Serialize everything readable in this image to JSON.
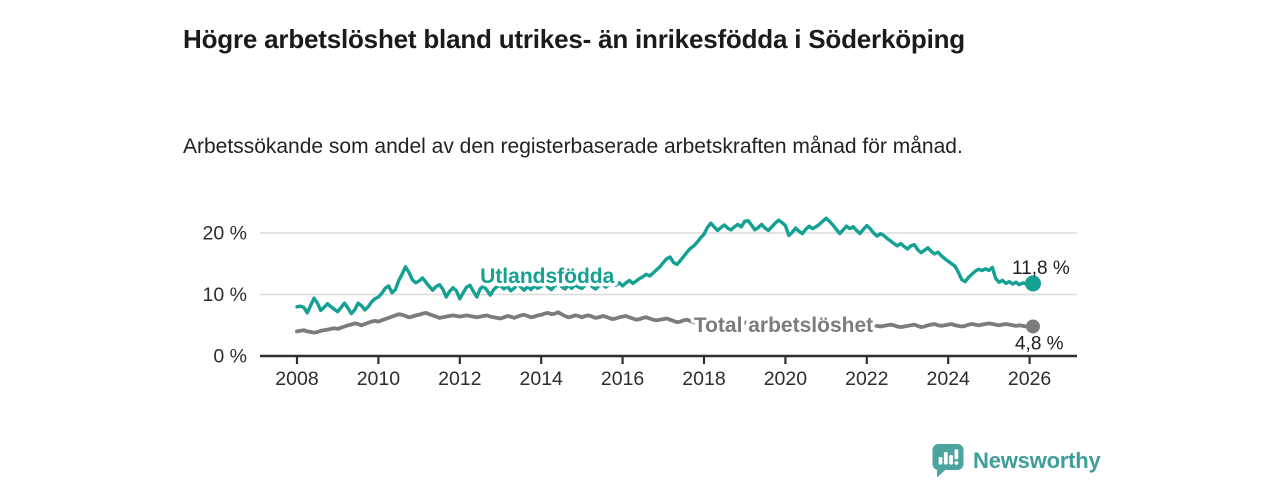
{
  "header": {
    "title": "Högre arbetslöshet bland utrikes- än inrikesfödda i Söderköping",
    "subtitle": "Arbetssökande som andel av den registerbaserade arbetskraften månad för månad."
  },
  "branding": {
    "logo_text": "Newsworthy",
    "logo_icon": "bar-chart-speech-bubble",
    "logo_color": "#4ba49f",
    "logo_text_color": "#3f9e99"
  },
  "colors": {
    "accent_teal": "#14a193",
    "neutral_gray": "#7c7c7c",
    "grid": "#dbdbdb",
    "axis": "#2f2f2f",
    "text_dark": "#1b1b1b"
  },
  "chart_data": {
    "type": "line",
    "title": "Högre arbetslöshet bland utrikes- än inrikesfödda i Söderköping",
    "subtitle": "Arbetssökande som andel av den registerbaserade arbetskraften månad för månad.",
    "x_start_year": 2008,
    "frequency": "monthly",
    "x_ticks": [
      2008,
      2010,
      2012,
      2014,
      2016,
      2018,
      2020,
      2022,
      2024,
      2026
    ],
    "yticks": [
      0,
      10,
      20
    ],
    "ytick_labels": [
      "0 %",
      "10 %",
      "20 %"
    ],
    "ylim": [
      0,
      24
    ],
    "grid": "horizontal",
    "legend_position": "inline-labels",
    "series": [
      {
        "name": "Utlandsfödda",
        "color": "#14a193",
        "end_label": "11,8 %",
        "end_value": 11.8,
        "label_year": 2012.5,
        "label_level": 11.9,
        "values": [
          8.0,
          8.1,
          7.9,
          7.0,
          8.2,
          9.4,
          8.6,
          7.4,
          7.9,
          8.5,
          8.0,
          7.6,
          7.2,
          7.9,
          8.6,
          7.8,
          6.9,
          7.5,
          8.6,
          8.2,
          7.5,
          8.0,
          8.8,
          9.3,
          9.6,
          10.2,
          11.0,
          11.4,
          10.3,
          10.8,
          12.3,
          13.3,
          14.5,
          13.6,
          12.4,
          11.9,
          12.2,
          12.7,
          12.0,
          11.3,
          10.7,
          11.3,
          11.6,
          10.9,
          9.6,
          10.5,
          11.1,
          10.6,
          9.3,
          10.3,
          11.2,
          11.5,
          10.5,
          9.6,
          10.9,
          11.4,
          10.7,
          9.9,
          10.8,
          11.3,
          11.5,
          10.9,
          11.4,
          10.6,
          11.0,
          11.7,
          11.2,
          10.7,
          11.3,
          10.8,
          11.4,
          11.0,
          11.3,
          11.8,
          11.2,
          10.8,
          11.4,
          11.9,
          11.3,
          10.9,
          11.5,
          11.0,
          11.6,
          11.2,
          11.0,
          11.5,
          11.9,
          11.3,
          10.9,
          11.4,
          11.8,
          11.2,
          11.6,
          12.0,
          11.5,
          11.9,
          11.4,
          11.9,
          12.3,
          11.8,
          12.2,
          12.6,
          12.9,
          13.3,
          13.0,
          13.5,
          14.0,
          14.5,
          15.2,
          15.8,
          16.1,
          15.2,
          14.9,
          15.5,
          16.2,
          16.9,
          17.5,
          17.9,
          18.5,
          19.2,
          19.8,
          20.9,
          21.6,
          21.0,
          20.4,
          20.9,
          21.3,
          20.8,
          20.5,
          21.0,
          21.4,
          21.0,
          21.9,
          22.0,
          21.3,
          20.5,
          20.9,
          21.4,
          20.8,
          20.4,
          21.0,
          21.6,
          22.1,
          21.7,
          21.2,
          19.6,
          20.1,
          20.8,
          20.3,
          19.9,
          20.6,
          21.1,
          20.7,
          21.0,
          21.4,
          21.9,
          22.4,
          21.9,
          21.3,
          20.6,
          19.9,
          20.5,
          21.1,
          20.7,
          21.0,
          20.4,
          19.9,
          20.6,
          21.2,
          20.7,
          20.0,
          19.5,
          19.9,
          19.6,
          19.1,
          18.7,
          18.3,
          17.9,
          18.3,
          17.8,
          17.4,
          17.9,
          18.1,
          17.3,
          16.8,
          17.2,
          17.6,
          17.0,
          16.6,
          16.9,
          16.3,
          15.8,
          15.4,
          15.0,
          14.6,
          13.6,
          12.4,
          12.1,
          12.8,
          13.3,
          13.8,
          14.1,
          13.9,
          14.2,
          13.9,
          14.4,
          12.6,
          12.0,
          12.3,
          11.8,
          12.1,
          11.7,
          12.0,
          11.6,
          11.9,
          11.7,
          11.9,
          11.8
        ]
      },
      {
        "name": "Total arbetslöshet",
        "color": "#7c7c7c",
        "end_label": "4,8 %",
        "end_value": 4.8,
        "label_year": 2017.75,
        "label_level": 3.9,
        "values": [
          4.0,
          4.1,
          4.2,
          4.0,
          3.9,
          3.8,
          3.9,
          4.1,
          4.2,
          4.3,
          4.4,
          4.5,
          4.4,
          4.6,
          4.8,
          5.0,
          5.1,
          5.3,
          5.2,
          5.0,
          5.2,
          5.4,
          5.6,
          5.7,
          5.6,
          5.8,
          6.0,
          6.2,
          6.4,
          6.6,
          6.8,
          6.7,
          6.5,
          6.3,
          6.4,
          6.6,
          6.7,
          6.9,
          7.0,
          6.8,
          6.6,
          6.4,
          6.2,
          6.3,
          6.4,
          6.5,
          6.6,
          6.5,
          6.4,
          6.5,
          6.6,
          6.5,
          6.4,
          6.3,
          6.4,
          6.5,
          6.6,
          6.4,
          6.3,
          6.2,
          6.1,
          6.3,
          6.5,
          6.4,
          6.2,
          6.4,
          6.6,
          6.7,
          6.5,
          6.3,
          6.4,
          6.6,
          6.7,
          6.9,
          7.0,
          6.8,
          6.9,
          7.1,
          6.8,
          6.5,
          6.3,
          6.4,
          6.6,
          6.5,
          6.3,
          6.5,
          6.6,
          6.4,
          6.2,
          6.3,
          6.5,
          6.4,
          6.2,
          6.0,
          6.1,
          6.3,
          6.4,
          6.5,
          6.3,
          6.1,
          5.9,
          6.0,
          6.2,
          6.3,
          6.1,
          5.9,
          5.8,
          5.9,
          6.0,
          6.1,
          5.9,
          5.7,
          5.5,
          5.6,
          5.8,
          5.9,
          5.7,
          5.5,
          5.4,
          5.3,
          5.4,
          5.5,
          5.6,
          5.4,
          5.3,
          5.4,
          5.5,
          5.6,
          5.4,
          5.3,
          5.2,
          5.3,
          5.4,
          5.5,
          5.3,
          5.2,
          5.3,
          5.4,
          5.5,
          5.4,
          5.2,
          5.1,
          5.2,
          5.3,
          5.4,
          5.6,
          5.8,
          5.9,
          5.8,
          5.7,
          5.6,
          5.5,
          5.4,
          5.3,
          5.2,
          5.3,
          5.4,
          5.5,
          5.4,
          5.3,
          5.2,
          5.1,
          5.0,
          5.1,
          5.2,
          5.1,
          5.0,
          4.9,
          5.0,
          5.1,
          5.0,
          4.9,
          4.8,
          4.9,
          5.0,
          5.1,
          5.0,
          4.8,
          4.7,
          4.8,
          4.9,
          5.0,
          5.1,
          4.9,
          4.7,
          4.8,
          5.0,
          5.1,
          5.2,
          5.0,
          4.9,
          5.0,
          5.1,
          5.2,
          5.0,
          4.9,
          4.8,
          4.9,
          5.1,
          5.2,
          5.1,
          5.0,
          5.1,
          5.2,
          5.3,
          5.2,
          5.1,
          5.0,
          5.1,
          5.2,
          5.1,
          5.0,
          4.9,
          5.0,
          4.9,
          4.8,
          4.8,
          4.8
        ]
      }
    ]
  }
}
